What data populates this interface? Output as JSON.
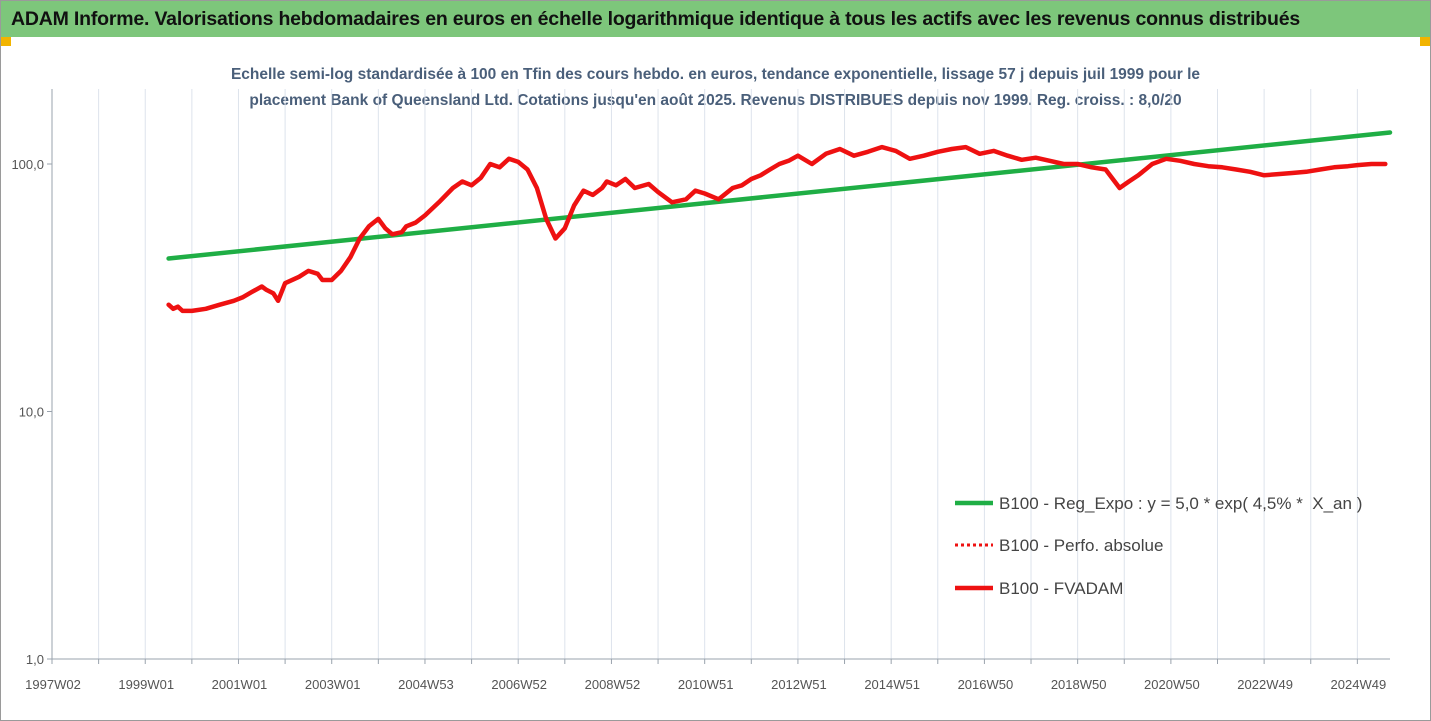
{
  "header": {
    "title": "ADAM Informe. Valorisations hebdomadaires en euros en échelle logarithmique identique à tous les actifs avec les revenus connus distribués"
  },
  "chart_data": {
    "type": "line",
    "title_line1": "Echelle semi-log standardisée à 100 en Tfin des cours hebdo. en euros, tendance exponentielle, lissage 57 j depuis juil 1999 pour le",
    "title_line2": "placement Bank of Queensland Ltd. Cotations jusqu'en août 2025. Revenus DISTRIBUES depuis nov 1999. Reg. croiss. : 8,0/20",
    "y_scale": "log",
    "ylim": [
      1,
      200
    ],
    "xlim": [
      1997.0,
      2025.7
    ],
    "y_ticks": [
      {
        "value": 1,
        "label": "1,0"
      },
      {
        "value": 10,
        "label": "10,0"
      },
      {
        "value": 100,
        "label": "100,0"
      }
    ],
    "x_tick_labels": [
      {
        "value": 1997.0,
        "label": "1997W02"
      },
      {
        "value": 1999.0,
        "label": "1999W01"
      },
      {
        "value": 2001.0,
        "label": "2001W01"
      },
      {
        "value": 2003.0,
        "label": "2003W01"
      },
      {
        "value": 2005.0,
        "label": "2004W53"
      },
      {
        "value": 2007.0,
        "label": "2006W52"
      },
      {
        "value": 2009.0,
        "label": "2008W52"
      },
      {
        "value": 2011.0,
        "label": "2010W51"
      },
      {
        "value": 2013.0,
        "label": "2012W51"
      },
      {
        "value": 2015.0,
        "label": "2014W51"
      },
      {
        "value": 2017.0,
        "label": "2016W50"
      },
      {
        "value": 2019.0,
        "label": "2018W50"
      },
      {
        "value": 2021.0,
        "label": "2020W50"
      },
      {
        "value": 2023.0,
        "label": "2022W49"
      },
      {
        "value": 2025.0,
        "label": "2024W49"
      }
    ],
    "grid": "vertical",
    "legend_position": "bottom-right",
    "series": [
      {
        "name": "B100 - Reg_Expo : y = 5,0 * exp( 4,5% *  X_an )",
        "color": "#1fae45",
        "style": "solid",
        "x": [
          1999.5,
          2025.7
        ],
        "y": [
          41.5,
          134
        ]
      },
      {
        "name": "B100 - Perfo. absolue",
        "color": "#ee1111",
        "style": "dotted",
        "x": [],
        "y": []
      },
      {
        "name": "B100 - FVADAM",
        "color": "#ee1111",
        "style": "solid",
        "x": [
          1999.5,
          1999.6,
          1999.7,
          1999.8,
          2000.0,
          2000.3,
          2000.6,
          2000.9,
          2001.1,
          2001.3,
          2001.5,
          2001.6,
          2001.75,
          2001.85,
          2002.0,
          2002.3,
          2002.5,
          2002.7,
          2002.8,
          2003.0,
          2003.2,
          2003.4,
          2003.6,
          2003.8,
          2004.0,
          2004.15,
          2004.3,
          2004.5,
          2004.6,
          2004.8,
          2005.0,
          2005.3,
          2005.6,
          2005.8,
          2006.0,
          2006.2,
          2006.4,
          2006.6,
          2006.8,
          2007.0,
          2007.2,
          2007.4,
          2007.6,
          2007.8,
          2008.0,
          2008.2,
          2008.4,
          2008.6,
          2008.8,
          2008.9,
          2009.1,
          2009.3,
          2009.5,
          2009.8,
          2010.0,
          2010.3,
          2010.6,
          2010.8,
          2011.0,
          2011.3,
          2011.6,
          2011.8,
          2012.0,
          2012.2,
          2012.4,
          2012.6,
          2012.8,
          2013.0,
          2013.3,
          2013.6,
          2013.9,
          2014.2,
          2014.5,
          2014.8,
          2015.1,
          2015.4,
          2015.7,
          2016.0,
          2016.3,
          2016.6,
          2016.9,
          2017.2,
          2017.5,
          2017.8,
          2018.1,
          2018.4,
          2018.7,
          2019.0,
          2019.3,
          2019.6,
          2019.9,
          2020.1,
          2020.3,
          2020.6,
          2020.9,
          2021.2,
          2021.5,
          2021.8,
          2022.1,
          2022.4,
          2022.7,
          2023.0,
          2023.3,
          2023.6,
          2023.9,
          2024.2,
          2024.5,
          2024.8,
          2025.0,
          2025.3,
          2025.6
        ],
        "y": [
          27,
          26,
          26.5,
          25.5,
          25.5,
          26,
          27,
          28,
          29,
          30.5,
          32,
          31,
          30,
          28,
          33,
          35,
          37,
          36,
          34,
          34,
          37,
          42,
          50,
          56,
          60,
          55,
          52,
          53,
          56,
          58,
          62,
          70,
          80,
          85,
          82,
          88,
          100,
          97,
          105,
          102,
          95,
          80,
          60,
          50,
          55,
          68,
          78,
          75,
          80,
          85,
          82,
          87,
          80,
          83,
          77,
          70,
          72,
          78,
          76,
          72,
          80,
          82,
          87,
          90,
          95,
          100,
          103,
          108,
          100,
          110,
          115,
          108,
          112,
          117,
          113,
          105,
          108,
          112,
          115,
          117,
          110,
          113,
          108,
          104,
          106,
          103,
          100,
          100,
          97,
          95,
          80,
          85,
          90,
          100,
          105,
          103,
          100,
          98,
          97,
          95,
          93,
          90,
          91,
          92,
          93,
          95,
          97,
          98,
          99,
          100,
          100
        ]
      }
    ]
  }
}
